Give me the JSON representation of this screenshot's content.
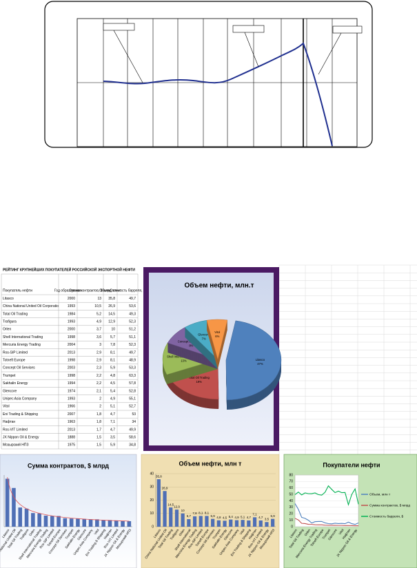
{
  "table": {
    "title": "РЕЙТИНГ КРУПНЕЙШИХ ПОКУПАТЕЛЕЙ РОССИЙСКОЙ ЭКСПОРТНОЙ НЕФТИ",
    "header": [
      "Покупатель нефти",
      "Год образования",
      "Сумма контрактов, $ млрд",
      "Объем, млн т",
      "Стоимость барреля, $"
    ],
    "rows": [
      [
        "Litasco",
        "2000",
        "13",
        "35,8",
        "49,7"
      ],
      [
        "China National United Oil Corporatio",
        "1993",
        "10,5",
        "26,9",
        "53,6"
      ],
      [
        "Total Oil Trading",
        "1984",
        "5,2",
        "14,5",
        "49,3"
      ],
      [
        "Trafigura",
        "1993",
        "4,9",
        "12,9",
        "52,3"
      ],
      [
        "Orlen",
        "2000",
        "3,7",
        "10",
        "51,2"
      ],
      [
        "Shell International Trading",
        "1998",
        "3,6",
        "5,7",
        "51,1"
      ],
      [
        "Mercuria Energy Trading",
        "2004",
        "3",
        "7,8",
        "52,3"
      ],
      [
        "Ros-SIP Limited",
        "2013",
        "2,9",
        "8,1",
        "49,7"
      ],
      [
        "Totneft Europe",
        "1998",
        "2,9",
        "8,1",
        "48,9"
      ],
      [
        "Concept Oil Servises",
        "2003",
        "2,3",
        "5,9",
        "53,3"
      ],
      [
        "Trumpet",
        "1998",
        "2,2",
        "4,8",
        "63,3"
      ],
      [
        "Sakhalin Energy",
        "1994",
        "2,2",
        "4,5",
        "57,8"
      ],
      [
        "Glencore",
        "1974",
        "2,1",
        "5,4",
        "52,8"
      ],
      [
        "Unipec Asia Company",
        "1993",
        "2",
        "4,9",
        "55,1"
      ],
      [
        "Vitol",
        "1966",
        "2",
        "5,1",
        "52,7"
      ],
      [
        "Eni Trading & Shipping",
        "2007",
        "1,8",
        "4,7",
        "53"
      ],
      [
        "Нафтан",
        "1963",
        "1,8",
        "7,1",
        "34"
      ],
      [
        "Ros-VIT Limited",
        "2013",
        "1,7",
        "4,7",
        "49,9"
      ],
      [
        "JX Nippon Oil & Energy",
        "1888",
        "1,5",
        "3,5",
        "58,6"
      ],
      [
        "Мозырский НПЗ",
        "1975",
        "1,5",
        "5,9",
        "34,8"
      ]
    ]
  },
  "chart_data": [
    {
      "type": "pie",
      "title": "Объем нефти, млн.т",
      "categories": [
        "Litasco",
        "Total Oil Trading",
        "Shell International Trading",
        "Concept Oil Services",
        "Glencore",
        "Vitol"
      ],
      "values": [
        47,
        19,
        13,
        8,
        7,
        6
      ],
      "value_labels": [
        "47%",
        "19%",
        "13%",
        "8%",
        "7%",
        "6%"
      ],
      "colors": [
        "#4f81bd",
        "#c0504d",
        "#9bbb59",
        "#8064a2",
        "#4bacc6",
        "#f79646"
      ]
    },
    {
      "type": "bar",
      "title": "Сумма контрактов, $ млрд",
      "categories": [
        "Litasco",
        "China National United Oil",
        "Total Oil Trading",
        "Trafigura",
        "Orlen",
        "Shell International Trading",
        "Mercuria Energy Trading",
        "Ros-SIP Limited",
        "Totneft Europe",
        "Concept Oil Servises",
        "Trumpet",
        "Sakhalin Energy",
        "Glencore",
        "Unipec Asia Company",
        "Vitol",
        "Eni Trading & Shipping",
        "Нафтан",
        "Ros-VIT Limited",
        "JX Nippon Oil & Energy",
        "Мозырский НПЗ"
      ],
      "values": [
        13,
        10.5,
        5.2,
        4.9,
        3.7,
        3.6,
        3,
        2.9,
        2.9,
        2.3,
        2.2,
        2.2,
        2.1,
        2,
        2,
        1.8,
        1.8,
        1.7,
        1.5,
        1.5
      ],
      "color": "#4f6fb5",
      "ylim": [
        0,
        14
      ],
      "trendline": "power",
      "trend_color": "#e05050"
    },
    {
      "type": "bar",
      "title": "Объем нефти, млн т",
      "categories": [
        "Litasco",
        "China National United Oil",
        "Total Oil Trading",
        "Trafigura",
        "Orlen",
        "Shell International",
        "Mercuria Energy Trading",
        "Ros-SIP Limited",
        "Totneft Europe",
        "Concept Oil Servises",
        "Trumpet",
        "Sakhalin Energy",
        "Glencore",
        "Unipec Asia Company",
        "Vitol",
        "Eni Trading & Shipping",
        "Нафтан",
        "Ros-VIT Limited",
        "JX Nippon Oil & Energy",
        "Мозырский НПЗ"
      ],
      "values": [
        35.8,
        26.9,
        14.5,
        12.9,
        10,
        5.7,
        7.8,
        8.1,
        8.1,
        5.9,
        4.8,
        4.5,
        5.4,
        4.9,
        5.1,
        4.7,
        7.1,
        4.7,
        3.5,
        5.9
      ],
      "value_labels": [
        "35,8",
        "26,9",
        "14,5",
        "12,9",
        "10",
        "5,7",
        "7,8",
        "8,1",
        "8,1",
        "5,9",
        "4,8",
        "4,5",
        "5,4",
        "4,9",
        "5,1",
        "4,7",
        "7,1",
        "4,7",
        "3,5",
        "5,9"
      ],
      "color": "#4f6fb5",
      "ylim": [
        0,
        40
      ],
      "yticks": [
        0,
        10,
        20,
        30,
        40
      ]
    },
    {
      "type": "line",
      "title": "Покупатели нефти",
      "categories": [
        "Litasco",
        null,
        "Total Oil Trading",
        null,
        "Orlen",
        null,
        "Mercuria Energy Trading",
        null,
        "Totneft Europe",
        null,
        "Trumpet",
        null,
        "Glencore",
        null,
        "Vitol",
        null,
        "Нафтан",
        null,
        "JX Nippon Oil & Energy",
        null
      ],
      "ylim": [
        0,
        80
      ],
      "yticks": [
        0,
        10,
        20,
        30,
        40,
        50,
        60,
        70,
        80
      ],
      "series": [
        {
          "name": "Объем, млн т",
          "color": "#4f81bd",
          "values": [
            35.8,
            26.9,
            14.5,
            12.9,
            10,
            5.7,
            7.8,
            8.1,
            8.1,
            5.9,
            4.8,
            4.5,
            5.4,
            4.9,
            5.1,
            4.7,
            7.1,
            4.7,
            3.5,
            5.9
          ]
        },
        {
          "name": "Сумма контрактов, $ млрд",
          "color": "#c0504d",
          "values": [
            13,
            10.5,
            5.2,
            4.9,
            3.7,
            3.6,
            3,
            2.9,
            2.9,
            2.3,
            2.2,
            2.2,
            2.1,
            2,
            2,
            1.8,
            1.8,
            1.7,
            1.5,
            1.5
          ]
        },
        {
          "name": "Стоимость барреля, $",
          "color": "#00b050",
          "values": [
            49.7,
            53.6,
            49.3,
            52.3,
            51.2,
            51.1,
            52.3,
            49.7,
            48.9,
            53.3,
            63.3,
            57.8,
            52.8,
            55.1,
            52.7,
            53,
            34,
            49.9,
            58.6,
            34.8
          ]
        }
      ]
    }
  ]
}
